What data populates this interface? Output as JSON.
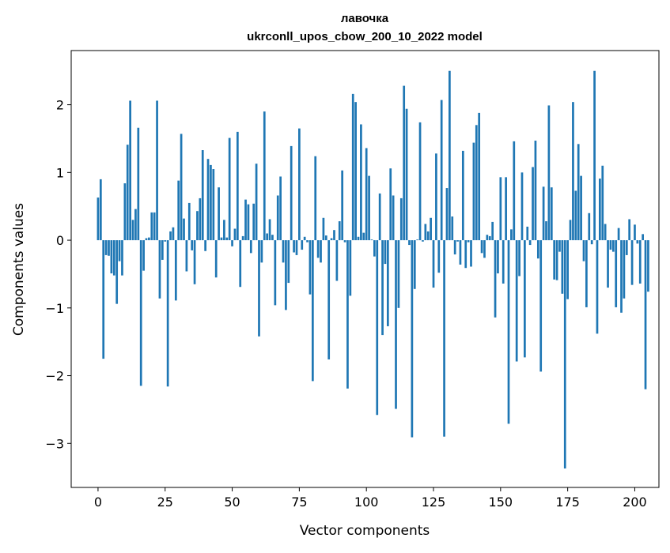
{
  "chart_data": {
    "type": "bar",
    "title": "лавочка",
    "subtitle": "ukrconll_upos_cbow_200_10_2022 model",
    "xlabel": "Vector components",
    "ylabel": "Components values",
    "xlim": [
      -10,
      209
    ],
    "ylim": [
      -3.65,
      2.8
    ],
    "xticks": [
      0,
      25,
      50,
      75,
      100,
      125,
      150,
      175,
      200
    ],
    "yticks": [
      -3,
      -2,
      -1,
      0,
      1,
      2
    ],
    "xtick_labels": [
      "0",
      "25",
      "50",
      "75",
      "100",
      "125",
      "150",
      "175",
      "200"
    ],
    "ytick_labels": [
      "−3",
      "−2",
      "−1",
      "0",
      "1",
      "2"
    ],
    "grid": false,
    "legend": "none",
    "bar_color": "#1f77b4",
    "values": [
      0.63,
      0.9,
      -1.75,
      -0.22,
      -0.23,
      -0.49,
      -0.52,
      -0.94,
      -0.31,
      -0.52,
      0.84,
      1.41,
      2.06,
      0.3,
      0.46,
      1.66,
      -2.15,
      -0.45,
      0.03,
      0.04,
      0.41,
      0.41,
      2.06,
      -0.86,
      -0.29,
      -0.02,
      -2.16,
      0.13,
      0.19,
      -0.89,
      0.88,
      1.57,
      0.32,
      -0.46,
      0.55,
      -0.15,
      -0.65,
      0.43,
      0.62,
      1.33,
      -0.16,
      1.2,
      1.11,
      1.05,
      -0.55,
      0.78,
      0.04,
      0.3,
      0.04,
      1.51,
      -0.09,
      0.17,
      1.6,
      -0.69,
      0.06,
      0.6,
      0.53,
      -0.19,
      0.54,
      1.13,
      -1.42,
      -0.33,
      1.9,
      0.1,
      0.31,
      0.08,
      -0.96,
      0.66,
      0.94,
      -0.33,
      -1.03,
      -0.63,
      1.39,
      -0.18,
      -0.22,
      1.65,
      -0.14,
      0.05,
      -0.03,
      -0.8,
      -2.08,
      1.24,
      -0.26,
      -0.33,
      0.33,
      0.07,
      -1.76,
      0.03,
      0.15,
      -0.6,
      0.28,
      1.03,
      -0.03,
      -2.19,
      -0.82,
      2.16,
      2.04,
      0.05,
      1.71,
      0.11,
      1.36,
      0.95,
      0.01,
      -0.24,
      -2.58,
      0.69,
      -1.4,
      -0.35,
      -1.27,
      1.06,
      0.66,
      -2.49,
      -1.0,
      0.62,
      2.28,
      1.94,
      -0.07,
      -2.91,
      -0.72,
      0.01,
      1.74,
      -0.02,
      0.24,
      0.13,
      0.33,
      -0.7,
      1.28,
      -0.48,
      2.07,
      -2.9,
      0.77,
      2.5,
      0.35,
      -0.21,
      -0.02,
      -0.36,
      1.32,
      -0.41,
      -0.03,
      -0.39,
      1.44,
      1.7,
      1.88,
      -0.19,
      -0.26,
      0.08,
      0.06,
      0.27,
      -1.14,
      -0.49,
      0.93,
      -0.64,
      0.93,
      -2.71,
      0.16,
      1.46,
      -1.79,
      -0.53,
      1.0,
      -1.73,
      0.2,
      -0.07,
      1.08,
      1.47,
      -0.27,
      -1.94,
      0.79,
      0.28,
      1.99,
      0.78,
      -0.58,
      -0.59,
      -0.17,
      -0.79,
      -3.37,
      -0.87,
      0.3,
      2.04,
      0.73,
      1.42,
      0.95,
      -0.31,
      -0.99,
      0.4,
      -0.06,
      2.5,
      -1.38,
      0.91,
      1.1,
      0.24,
      -0.7,
      -0.14,
      -0.17,
      -0.99,
      0.18,
      -1.07,
      -0.86,
      -0.22,
      0.31,
      -0.66,
      0.23,
      -0.05,
      -0.64,
      0.09,
      -2.2,
      -0.76
    ]
  }
}
